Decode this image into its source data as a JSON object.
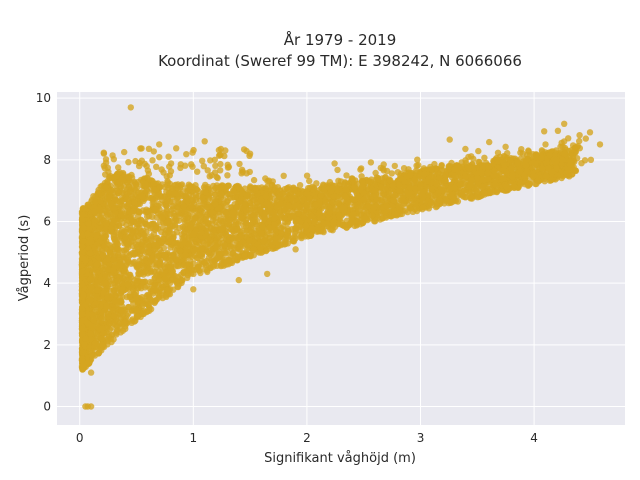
{
  "chart_data": {
    "type": "scatter",
    "title": "År 1979 - 2019",
    "subtitle": "Koordinat (Sweref 99 TM): E 398242, N 6066066",
    "xlabel": "Signifikant våghöjd (m)",
    "ylabel": "Vågperiod (s)",
    "xlim": [
      -0.2,
      4.8
    ],
    "ylim": [
      -0.6,
      10.2
    ],
    "x_ticks": [
      0,
      1,
      2,
      3,
      4
    ],
    "y_ticks": [
      0,
      2,
      4,
      6,
      8,
      10
    ],
    "x_tick_labels": [
      "0",
      "1",
      "2",
      "3",
      "4"
    ],
    "y_tick_labels": [
      "0",
      "2",
      "4",
      "6",
      "8",
      "10"
    ],
    "grid": true,
    "marker_color": "#D4A520",
    "background_color": "#E9E9F0",
    "series": [
      {
        "points": [
          {
            "x": 0.05,
            "y": 0.0
          },
          {
            "x": 0.07,
            "y": 0.0
          },
          {
            "x": 0.1,
            "y": 0.0
          },
          {
            "x": 0.02,
            "y": 1.5
          },
          {
            "x": 0.05,
            "y": 2.2
          },
          {
            "x": 0.08,
            "y": 3.4
          },
          {
            "x": 0.1,
            "y": 1.1
          },
          {
            "x": 0.12,
            "y": 2.8
          },
          {
            "x": 0.15,
            "y": 4.6
          },
          {
            "x": 0.18,
            "y": 6.4
          },
          {
            "x": 0.2,
            "y": 2.0
          },
          {
            "x": 0.25,
            "y": 3.0
          },
          {
            "x": 0.3,
            "y": 5.5
          },
          {
            "x": 0.35,
            "y": 7.6
          },
          {
            "x": 0.4,
            "y": 2.6
          },
          {
            "x": 0.45,
            "y": 9.7
          },
          {
            "x": 0.5,
            "y": 4.0
          },
          {
            "x": 0.55,
            "y": 6.8
          },
          {
            "x": 0.6,
            "y": 3.3
          },
          {
            "x": 0.7,
            "y": 8.5
          },
          {
            "x": 0.8,
            "y": 4.5
          },
          {
            "x": 0.9,
            "y": 7.2
          },
          {
            "x": 1.0,
            "y": 3.8
          },
          {
            "x": 1.1,
            "y": 8.6
          },
          {
            "x": 1.2,
            "y": 5.2
          },
          {
            "x": 1.3,
            "y": 7.5
          },
          {
            "x": 1.4,
            "y": 4.1
          },
          {
            "x": 1.5,
            "y": 8.2
          },
          {
            "x": 1.6,
            "y": 5.6
          },
          {
            "x": 1.7,
            "y": 7.3
          },
          {
            "x": 1.65,
            "y": 4.3
          },
          {
            "x": 1.8,
            "y": 6.4
          },
          {
            "x": 1.9,
            "y": 5.1
          },
          {
            "x": 2.0,
            "y": 6.9
          },
          {
            "x": 2.1,
            "y": 5.7
          },
          {
            "x": 2.2,
            "y": 6.3
          },
          {
            "x": 2.3,
            "y": 7.3
          },
          {
            "x": 2.4,
            "y": 6.0
          },
          {
            "x": 2.5,
            "y": 6.7
          },
          {
            "x": 2.6,
            "y": 7.0
          },
          {
            "x": 2.7,
            "y": 6.5
          },
          {
            "x": 2.8,
            "y": 7.6
          },
          {
            "x": 2.9,
            "y": 6.9
          },
          {
            "x": 3.0,
            "y": 7.2
          },
          {
            "x": 3.1,
            "y": 7.7
          },
          {
            "x": 3.2,
            "y": 7.0
          },
          {
            "x": 3.3,
            "y": 7.5
          },
          {
            "x": 3.4,
            "y": 7.9
          },
          {
            "x": 3.5,
            "y": 7.4
          },
          {
            "x": 3.6,
            "y": 7.8
          },
          {
            "x": 3.7,
            "y": 8.1
          },
          {
            "x": 3.8,
            "y": 7.7
          },
          {
            "x": 3.9,
            "y": 8.2
          },
          {
            "x": 4.0,
            "y": 7.9
          },
          {
            "x": 4.1,
            "y": 8.5
          },
          {
            "x": 4.2,
            "y": 8.0
          },
          {
            "x": 4.3,
            "y": 8.7
          },
          {
            "x": 4.4,
            "y": 8.8
          },
          {
            "x": 4.5,
            "y": 8.0
          },
          {
            "x": 4.58,
            "y": 8.5
          }
        ]
      }
    ]
  }
}
